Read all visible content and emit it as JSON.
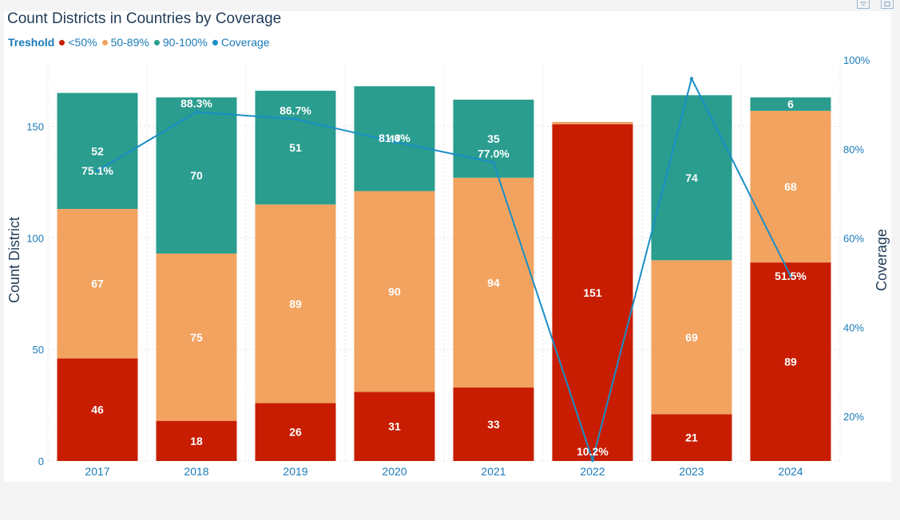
{
  "chart_data": {
    "type": "bar",
    "stacked": true,
    "title": "Count Districts in Countries by Coverage",
    "legend_title": "Treshold",
    "legend": [
      {
        "name": "<50%",
        "color": "#c81d00"
      },
      {
        "name": "50-89%",
        "color": "#f2a360"
      },
      {
        "name": "90-100%",
        "color": "#2a9d8f"
      },
      {
        "name": "Coverage",
        "color": "#1a8ec7"
      }
    ],
    "categories": [
      "2017",
      "2018",
      "2019",
      "2020",
      "2021",
      "2022",
      "2023",
      "2024"
    ],
    "series": [
      {
        "name": "<50%",
        "color": "#c81d00",
        "values": [
          46,
          18,
          26,
          31,
          33,
          151,
          21,
          89
        ]
      },
      {
        "name": "50-89%",
        "color": "#f2a360",
        "values": [
          67,
          75,
          89,
          90,
          94,
          1,
          69,
          68
        ]
      },
      {
        "name": "90-100%",
        "color": "#2a9d8f",
        "values": [
          52,
          70,
          51,
          47,
          35,
          0,
          74,
          6
        ]
      }
    ],
    "stack_labels": [
      [
        "46",
        "18",
        "26",
        "31",
        "33",
        "151",
        "21",
        "89"
      ],
      [
        "67",
        "75",
        "89",
        "90",
        "94",
        "",
        "69",
        "68"
      ],
      [
        "52",
        "70",
        "51",
        "47",
        "35",
        "",
        "74",
        "6"
      ]
    ],
    "line_series": {
      "name": "Coverage",
      "color": "#1a8ec7",
      "values": [
        75.1,
        88.3,
        86.7,
        81.6,
        77.0,
        10.2,
        95.8,
        51.5
      ],
      "labels": [
        "75.1%",
        "88.3%",
        "86.7%",
        "81.6%",
        "77.0%",
        "10.2%",
        "",
        "51.5%"
      ]
    },
    "ylabel": "Count District",
    "ylim": [
      0,
      175
    ],
    "yticks": [
      0,
      50,
      100,
      150
    ],
    "y2label": "Coverage",
    "y2lim": [
      10,
      100
    ],
    "y2ticks": [
      20,
      40,
      60,
      80,
      100
    ],
    "y2tick_labels": [
      "20%",
      "40%",
      "60%",
      "80%",
      "100%"
    ]
  }
}
